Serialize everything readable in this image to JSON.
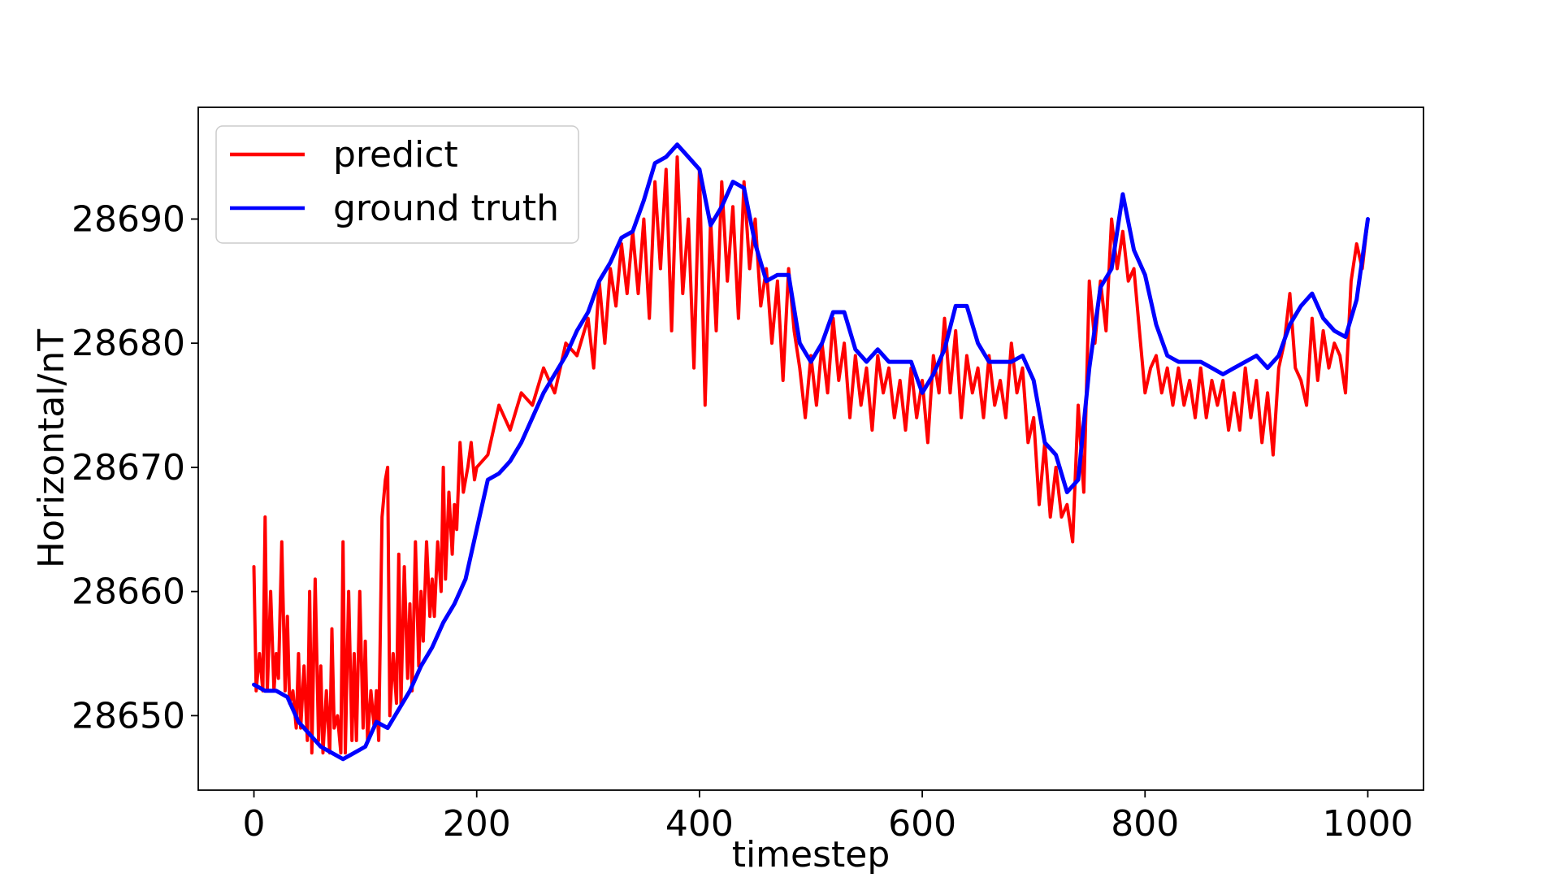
{
  "chart_data": {
    "type": "line",
    "title": "",
    "xlabel": "timestep",
    "ylabel": "Horizontal/nT",
    "xlim": [
      -50,
      1050
    ],
    "ylim": [
      28644.0,
      28699.0
    ],
    "x_ticks": [
      0,
      200,
      400,
      600,
      800,
      1000
    ],
    "x_tick_labels": [
      "0",
      "200",
      "400",
      "600",
      "800",
      "1000"
    ],
    "y_ticks": [
      28650,
      28660,
      28670,
      28680,
      28690
    ],
    "y_tick_labels": [
      "28650",
      "28660",
      "28670",
      "28680",
      "28690"
    ],
    "grid": false,
    "legend_position": "upper-left",
    "series": [
      {
        "name": "ground truth",
        "color": "#0000ff",
        "x": [
          0,
          10,
          20,
          30,
          40,
          50,
          60,
          70,
          80,
          90,
          100,
          110,
          120,
          130,
          140,
          150,
          160,
          170,
          180,
          190,
          200,
          210,
          220,
          230,
          240,
          250,
          260,
          270,
          280,
          290,
          300,
          310,
          320,
          330,
          340,
          350,
          360,
          370,
          380,
          390,
          400,
          410,
          420,
          430,
          440,
          450,
          460,
          470,
          480,
          490,
          500,
          510,
          520,
          530,
          540,
          550,
          560,
          570,
          580,
          590,
          600,
          610,
          620,
          630,
          640,
          650,
          660,
          670,
          680,
          690,
          700,
          710,
          720,
          730,
          740,
          750,
          760,
          770,
          780,
          790,
          800,
          810,
          820,
          830,
          840,
          850,
          860,
          870,
          880,
          890,
          900,
          910,
          920,
          930,
          940,
          950,
          960,
          970,
          980,
          990,
          1000
        ],
        "y": [
          28652.5,
          28652.0,
          28652.0,
          28651.5,
          28649.5,
          28648.5,
          28647.5,
          28647.0,
          28646.5,
          28647.0,
          28647.5,
          28649.5,
          28649.0,
          28650.5,
          28652.0,
          28654.0,
          28655.5,
          28657.5,
          28659.0,
          28661.0,
          28665.0,
          28669.0,
          28669.5,
          28670.5,
          28672.0,
          28674.0,
          28676.0,
          28677.5,
          28679.0,
          28681.0,
          28682.5,
          28685.0,
          28686.5,
          28688.5,
          28689.0,
          28691.5,
          28694.5,
          28695.0,
          28696.0,
          28695.0,
          28694.0,
          28689.5,
          28691.0,
          28693.0,
          28692.5,
          28688.0,
          28685.0,
          28685.5,
          28685.5,
          28680.0,
          28678.5,
          28680.0,
          28682.5,
          28682.5,
          28679.5,
          28678.5,
          28679.5,
          28678.5,
          28678.5,
          28678.5,
          28676.0,
          28677.5,
          28679.5,
          28683.0,
          28683.0,
          28680.0,
          28678.5,
          28678.5,
          28678.5,
          28679.0,
          28677.0,
          28672.0,
          28671.0,
          28668.0,
          28669.0,
          28678.0,
          28684.5,
          28686.0,
          28692.0,
          28687.5,
          28685.5,
          28681.5,
          28679.0,
          28678.5,
          28678.5,
          28678.5,
          28678.0,
          28677.5,
          28678.0,
          28678.5,
          28679.0,
          28678.0,
          28679.0,
          28681.5,
          28683.0,
          28684.0,
          28682.0,
          28681.0,
          28680.5,
          28683.5,
          28690.0
        ]
      },
      {
        "name": "predict",
        "color": "#ff0000",
        "x": [
          0,
          2,
          5,
          8,
          10,
          12,
          15,
          18,
          20,
          22,
          25,
          28,
          30,
          32,
          35,
          38,
          40,
          42,
          45,
          48,
          50,
          52,
          55,
          58,
          60,
          62,
          65,
          68,
          70,
          72,
          75,
          78,
          80,
          82,
          85,
          88,
          90,
          92,
          95,
          98,
          100,
          102,
          105,
          108,
          110,
          112,
          115,
          118,
          120,
          122,
          125,
          128,
          130,
          132,
          135,
          138,
          140,
          142,
          145,
          148,
          150,
          152,
          155,
          158,
          160,
          162,
          165,
          168,
          170,
          172,
          175,
          178,
          180,
          182,
          185,
          188,
          190,
          192,
          195,
          198,
          200,
          210,
          220,
          230,
          240,
          250,
          260,
          270,
          280,
          290,
          300,
          305,
          310,
          315,
          320,
          325,
          330,
          335,
          340,
          345,
          350,
          355,
          360,
          365,
          370,
          375,
          380,
          385,
          390,
          395,
          400,
          405,
          410,
          415,
          420,
          425,
          430,
          435,
          440,
          445,
          450,
          455,
          460,
          465,
          470,
          475,
          480,
          485,
          490,
          495,
          500,
          505,
          510,
          515,
          520,
          525,
          530,
          535,
          540,
          545,
          550,
          555,
          560,
          565,
          570,
          575,
          580,
          585,
          590,
          595,
          600,
          605,
          610,
          615,
          620,
          625,
          630,
          635,
          640,
          645,
          650,
          655,
          660,
          665,
          670,
          675,
          680,
          685,
          690,
          695,
          700,
          705,
          710,
          715,
          720,
          725,
          730,
          735,
          740,
          745,
          750,
          755,
          760,
          765,
          770,
          775,
          780,
          785,
          790,
          795,
          800,
          805,
          810,
          815,
          820,
          825,
          830,
          835,
          840,
          845,
          850,
          855,
          860,
          865,
          870,
          875,
          880,
          885,
          890,
          895,
          900,
          905,
          910,
          915,
          920,
          925,
          930,
          935,
          940,
          945,
          950,
          955,
          960,
          965,
          970,
          975,
          980,
          985,
          990,
          995,
          1000
        ],
        "y": [
          28662,
          28652,
          28655,
          28652,
          28666,
          28652,
          28660,
          28652,
          28655,
          28653,
          28664,
          28652,
          28658,
          28651,
          28652,
          28649,
          28655,
          28649,
          28654,
          28648,
          28660,
          28647,
          28661,
          28648,
          28654,
          28647,
          28652,
          28647,
          28657,
          28649,
          28650,
          28647,
          28664,
          28647,
          28660,
          28648,
          28655,
          28648,
          28660,
          28649,
          28656,
          28648,
          28652,
          28649,
          28652,
          28648,
          28666,
          28669,
          28670,
          28650,
          28655,
          28651,
          28663,
          28651,
          28662,
          28653,
          28659,
          28652,
          28664,
          28654,
          28660,
          28656,
          28664,
          28658,
          28661,
          28658,
          28664,
          28660,
          28670,
          28661,
          28668,
          28663,
          28667,
          28665,
          28672,
          28668,
          28669,
          28670,
          28672,
          28669,
          28670,
          28671,
          28675,
          28673,
          28676,
          28675,
          28678,
          28676,
          28680,
          28679,
          28682,
          28678,
          28685,
          28680,
          28686,
          28683,
          28688,
          28684,
          28689,
          28684,
          28690,
          28682,
          28693,
          28686,
          28694,
          28681,
          28695,
          28684,
          28690,
          28678,
          28694,
          28675,
          28690,
          28681,
          28693,
          28685,
          28691,
          28682,
          28693,
          28686,
          28690,
          28683,
          28686,
          28680,
          28685,
          28677,
          28686,
          28681,
          28678,
          28674,
          28679,
          28675,
          28680,
          28676,
          28682,
          28677,
          28680,
          28674,
          28679,
          28675,
          28678,
          28673,
          28679,
          28676,
          28678,
          28674,
          28677,
          28673,
          28678,
          28674,
          28677,
          28672,
          28679,
          28676,
          28682,
          28676,
          28681,
          28674,
          28679,
          28676,
          28678,
          28674,
          28679,
          28675,
          28677,
          28674,
          28680,
          28676,
          28678,
          28672,
          28674,
          28667,
          28672,
          28666,
          28670,
          28666,
          28667,
          28664,
          28675,
          28668,
          28685,
          28680,
          28685,
          28681,
          28690,
          28686,
          28689,
          28685,
          28686,
          28681,
          28676,
          28678,
          28679,
          28676,
          28678,
          28675,
          28678,
          28675,
          28677,
          28674,
          28678,
          28674,
          28677,
          28675,
          28677,
          28673,
          28676,
          28673,
          28678,
          28674,
          28677,
          28672,
          28676,
          28671,
          28678,
          28680,
          28684,
          28678,
          28677,
          28675,
          28682,
          28677,
          28681,
          28678,
          28680,
          28679,
          28676,
          28685,
          28688,
          28686,
          28690
        ]
      }
    ]
  },
  "legend": {
    "items": [
      {
        "label": "predict",
        "color": "#ff0000"
      },
      {
        "label": "ground truth",
        "color": "#0000ff"
      }
    ]
  }
}
